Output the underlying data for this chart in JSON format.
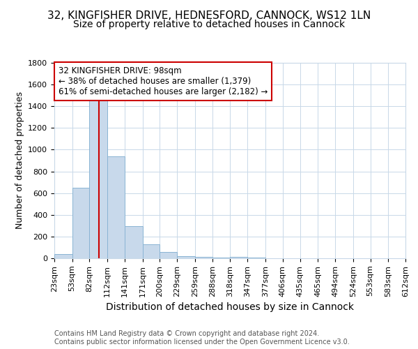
{
  "title1": "32, KINGFISHER DRIVE, HEDNESFORD, CANNOCK, WS12 1LN",
  "title2": "Size of property relative to detached houses in Cannock",
  "xlabel": "Distribution of detached houses by size in Cannock",
  "ylabel": "Number of detached properties",
  "bins": [
    23,
    53,
    82,
    112,
    141,
    171,
    200,
    229,
    259,
    288,
    318,
    347,
    377,
    406,
    435,
    465,
    494,
    524,
    553,
    583,
    612
  ],
  "bar_heights": [
    40,
    650,
    1470,
    940,
    295,
    130,
    60,
    20,
    10,
    5,
    10,
    5,
    0,
    0,
    0,
    0,
    0,
    0,
    0,
    0
  ],
  "bar_color": "#c8d9eb",
  "bar_edgecolor": "#8ab4d4",
  "grid_color": "#c8d8e8",
  "background_color": "#ffffff",
  "red_line_x": 98,
  "ylim": [
    0,
    1800
  ],
  "yticks": [
    0,
    200,
    400,
    600,
    800,
    1000,
    1200,
    1400,
    1600,
    1800
  ],
  "annotation_line1": "32 KINGFISHER DRIVE: 98sqm",
  "annotation_line2": "← 38% of detached houses are smaller (1,379)",
  "annotation_line3": "61% of semi-detached houses are larger (2,182) →",
  "annotation_box_color": "#ffffff",
  "annotation_box_edgecolor": "#cc0000",
  "footer_text": "Contains HM Land Registry data © Crown copyright and database right 2024.\nContains public sector information licensed under the Open Government Licence v3.0.",
  "title1_fontsize": 11,
  "title2_fontsize": 10,
  "xlabel_fontsize": 10,
  "ylabel_fontsize": 9,
  "tick_fontsize": 8,
  "annotation_fontsize": 8.5,
  "footer_fontsize": 7
}
